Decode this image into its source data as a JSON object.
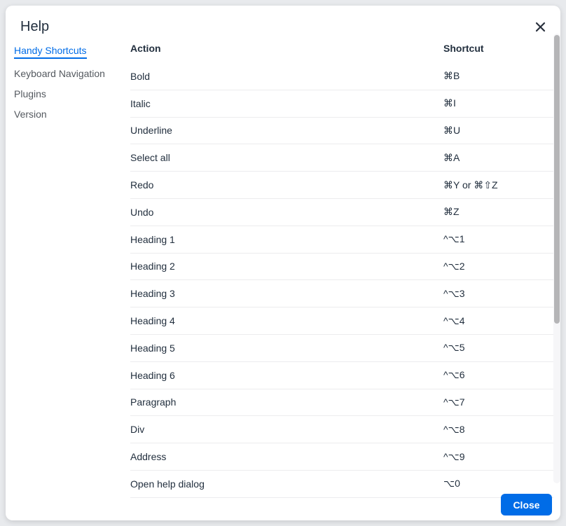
{
  "dialog": {
    "title": "Help"
  },
  "sidebar": {
    "items": [
      {
        "label": "Handy Shortcuts",
        "active": true
      },
      {
        "label": "Keyboard Navigation",
        "active": false
      },
      {
        "label": "Plugins",
        "active": false
      },
      {
        "label": "Version",
        "active": false
      }
    ]
  },
  "shortcuts_table": {
    "headers": [
      "Action",
      "Shortcut"
    ],
    "rows": [
      [
        "Bold",
        "⌘B"
      ],
      [
        "Italic",
        "⌘I"
      ],
      [
        "Underline",
        "⌘U"
      ],
      [
        "Select all",
        "⌘A"
      ],
      [
        "Redo",
        "⌘Y or ⌘⇧Z"
      ],
      [
        "Undo",
        "⌘Z"
      ],
      [
        "Heading 1",
        "^⌥1"
      ],
      [
        "Heading 2",
        "^⌥2"
      ],
      [
        "Heading 3",
        "^⌥3"
      ],
      [
        "Heading 4",
        "^⌥4"
      ],
      [
        "Heading 5",
        "^⌥5"
      ],
      [
        "Heading 6",
        "^⌥6"
      ],
      [
        "Paragraph",
        "^⌥7"
      ],
      [
        "Div",
        "^⌥8"
      ],
      [
        "Address",
        "^⌥9"
      ],
      [
        "Open help dialog",
        "⌥0"
      ]
    ]
  },
  "footer": {
    "close_label": "Close"
  },
  "colors": {
    "accent": "#006ce7",
    "text": "#222f3e",
    "inactive_nav": "#54595f",
    "row_border": "#ececee"
  }
}
